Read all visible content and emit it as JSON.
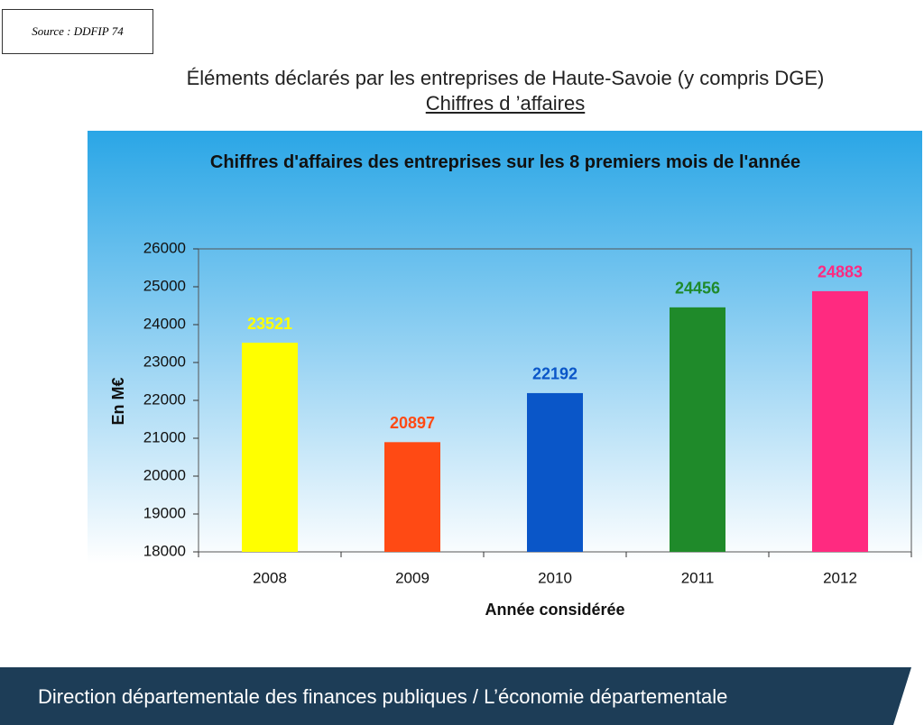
{
  "source": "Source : DDFIP 74",
  "header": {
    "title": "Éléments déclarés par les entreprises de Haute-Savoie (y compris DGE)",
    "subtitle": "Chiffres d ’affaires"
  },
  "footer": "Direction départementale des finances publiques / L’économie départementale",
  "chart_data": {
    "type": "bar",
    "title": "Chiffres d'affaires des entreprises sur les 8 premiers mois de l'année",
    "y_label": "En M€",
    "x_label": "Année considérée",
    "categories": [
      "2008",
      "2009",
      "2010",
      "2011",
      "2012"
    ],
    "values": [
      23521,
      20897,
      22192,
      24456,
      24883
    ],
    "colors": [
      "#ffff00",
      "#ff4a14",
      "#0a56c8",
      "#1f8a2a",
      "#ff2a80"
    ],
    "ylim": [
      18000,
      26000
    ],
    "yticks": [
      18000,
      19000,
      20000,
      21000,
      22000,
      23000,
      24000,
      25000,
      26000
    ]
  }
}
